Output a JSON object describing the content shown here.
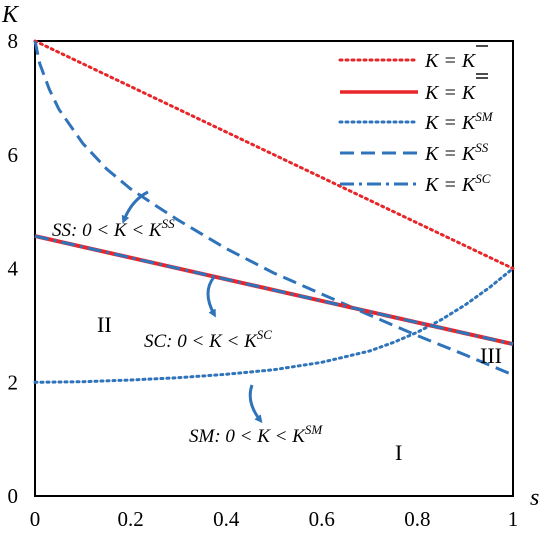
{
  "chart_data": {
    "type": "line",
    "xlabel": "s",
    "ylabel": "K",
    "xlim": [
      0,
      1
    ],
    "ylim": [
      0,
      8
    ],
    "xticks": [
      "0",
      "0.2",
      "0.4",
      "0.6",
      "0.8",
      "1"
    ],
    "yticks": [
      "0",
      "2",
      "4",
      "6",
      "8"
    ],
    "grid": false,
    "legend_position": "top-right",
    "series": [
      {
        "name": "K = K̄",
        "style": "dotted",
        "color": "#e8262a",
        "x": [
          0,
          1
        ],
        "y": [
          8,
          4
        ]
      },
      {
        "name": "K = K̿",
        "style": "solid",
        "color": "#e8262a",
        "x": [
          0,
          1
        ],
        "y": [
          4.57,
          2.67
        ]
      },
      {
        "name": "K = K^SM",
        "style": "dotted",
        "color": "#2f73bb",
        "x": [
          0,
          0.1,
          0.2,
          0.3,
          0.4,
          0.5,
          0.6,
          0.7,
          0.75,
          0.8,
          0.85,
          0.9,
          0.95,
          1
        ],
        "y": [
          2,
          2.01,
          2.04,
          2.08,
          2.14,
          2.22,
          2.35,
          2.55,
          2.7,
          2.88,
          3.1,
          3.36,
          3.66,
          4
        ]
      },
      {
        "name": "K = K^SS",
        "style": "dashed",
        "color": "#2f73bb",
        "x": [
          0,
          0.01,
          0.03,
          0.05,
          0.1,
          0.15,
          0.2,
          0.25,
          0.3,
          0.4,
          0.5,
          0.6,
          0.7,
          0.8,
          0.9,
          1
        ],
        "y": [
          8,
          7.6,
          7.15,
          6.8,
          6.2,
          5.75,
          5.4,
          5.12,
          4.85,
          4.35,
          3.92,
          3.55,
          3.18,
          2.82,
          2.48,
          2.13
        ]
      },
      {
        "name": "K = K^SC",
        "style": "dashdot",
        "color": "#2f73bb",
        "x": [
          0,
          1
        ],
        "y": [
          4.57,
          2.67
        ]
      }
    ],
    "legend": [
      {
        "lhs": "K = ",
        "sym": "K",
        "bar": "single"
      },
      {
        "lhs": "K = ",
        "sym": "K",
        "bar": "double"
      },
      {
        "lhs": "K = K",
        "sup": "SM"
      },
      {
        "lhs": "K = K",
        "sup": "SS"
      },
      {
        "lhs": "K = K",
        "sup": "SC"
      }
    ],
    "annotations": [
      {
        "label": "SS: 0 < K < K",
        "sup": "SS"
      },
      {
        "label": "SC: 0 < K < K",
        "sup": "SC"
      },
      {
        "label": "SM: 0 < K < K",
        "sup": "SM"
      }
    ],
    "regions": [
      "I",
      "II",
      "III"
    ]
  }
}
